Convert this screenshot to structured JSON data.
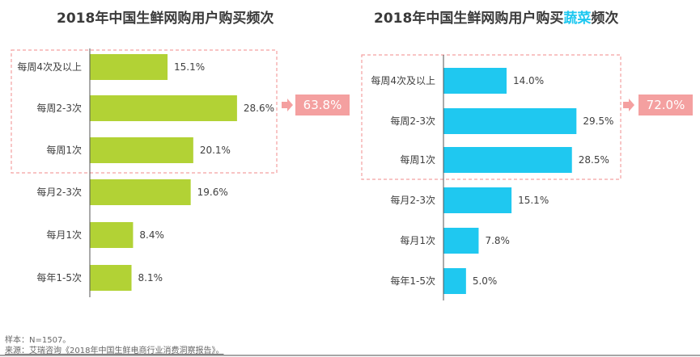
{
  "chart_data": [
    {
      "type": "bar",
      "orientation": "horizontal",
      "title": "2018年中国生鲜网购用户购买频次",
      "categories": [
        "每周4次及以上",
        "每周2-3次",
        "每周1次",
        "每月2-3次",
        "每月1次",
        "每年1-5次"
      ],
      "values": [
        15.1,
        28.6,
        20.1,
        19.6,
        8.4,
        8.1
      ],
      "labels": [
        "15.1%",
        "28.6%",
        "20.1%",
        "19.6%",
        "8.4%",
        "8.1%"
      ],
      "color": "#b2d235",
      "highlight_total": "63.8%"
    },
    {
      "type": "bar",
      "orientation": "horizontal",
      "title_prefix": "2018年中国生鲜网购用户购买",
      "title_highlight": "蔬菜",
      "title_suffix": "频次",
      "categories": [
        "每周4次及以上",
        "每周2-3次",
        "每周1次",
        "每月2-3次",
        "每月1次",
        "每年1-5次"
      ],
      "values": [
        14.0,
        29.5,
        28.5,
        15.1,
        7.8,
        5.0
      ],
      "labels": [
        "14.0%",
        "29.5%",
        "28.5%",
        "15.1%",
        "7.8%",
        "5.0%"
      ],
      "color": "#1fc8f0",
      "highlight_total": "72.0%"
    }
  ],
  "footer": {
    "sample": "样本：N=1507。",
    "source": "来源：艾瑞咨询《2018年中国生鲜电商行业消费洞察报告》。"
  }
}
